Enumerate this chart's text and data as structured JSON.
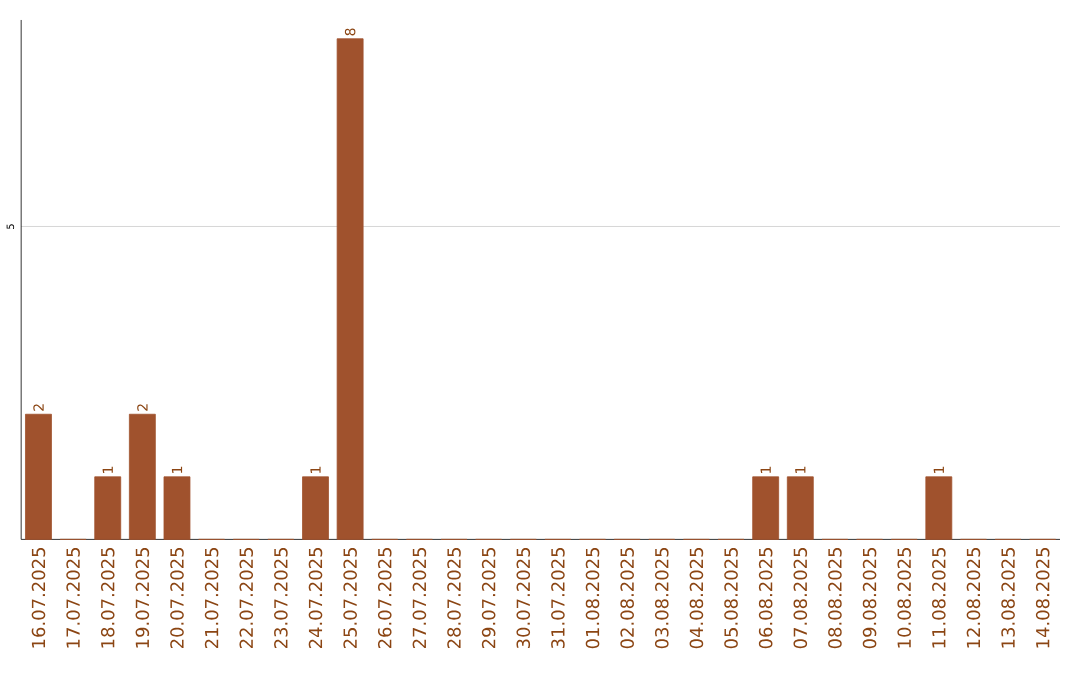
{
  "chart_data": {
    "type": "bar",
    "categories": [
      "16.07.2025",
      "17.07.2025",
      "18.07.2025",
      "19.07.2025",
      "20.07.2025",
      "21.07.2025",
      "22.07.2025",
      "23.07.2025",
      "24.07.2025",
      "25.07.2025",
      "26.07.2025",
      "27.07.2025",
      "28.07.2025",
      "29.07.2025",
      "30.07.2025",
      "31.07.2025",
      "01.08.2025",
      "02.08.2025",
      "03.08.2025",
      "04.08.2025",
      "05.08.2025",
      "06.08.2025",
      "07.08.2025",
      "08.08.2025",
      "09.08.2025",
      "10.08.2025",
      "11.08.2025",
      "12.08.2025",
      "13.08.2025",
      "14.08.2025"
    ],
    "values": [
      2,
      0,
      1,
      2,
      1,
      0,
      0,
      0,
      1,
      8,
      0,
      0,
      0,
      0,
      0,
      0,
      0,
      0,
      0,
      0,
      0,
      1,
      1,
      0,
      0,
      0,
      1,
      0,
      0,
      0
    ],
    "value_labels": [
      "2",
      null,
      "1",
      "2",
      "1",
      null,
      null,
      null,
      "1",
      "8",
      null,
      null,
      null,
      null,
      null,
      null,
      null,
      null,
      null,
      null,
      null,
      "1",
      "1",
      null,
      null,
      null,
      "1",
      null,
      null,
      null
    ],
    "color": "#a0522d",
    "ylim": [
      0,
      8.3
    ],
    "yticks": [
      5
    ],
    "grid": "y"
  }
}
